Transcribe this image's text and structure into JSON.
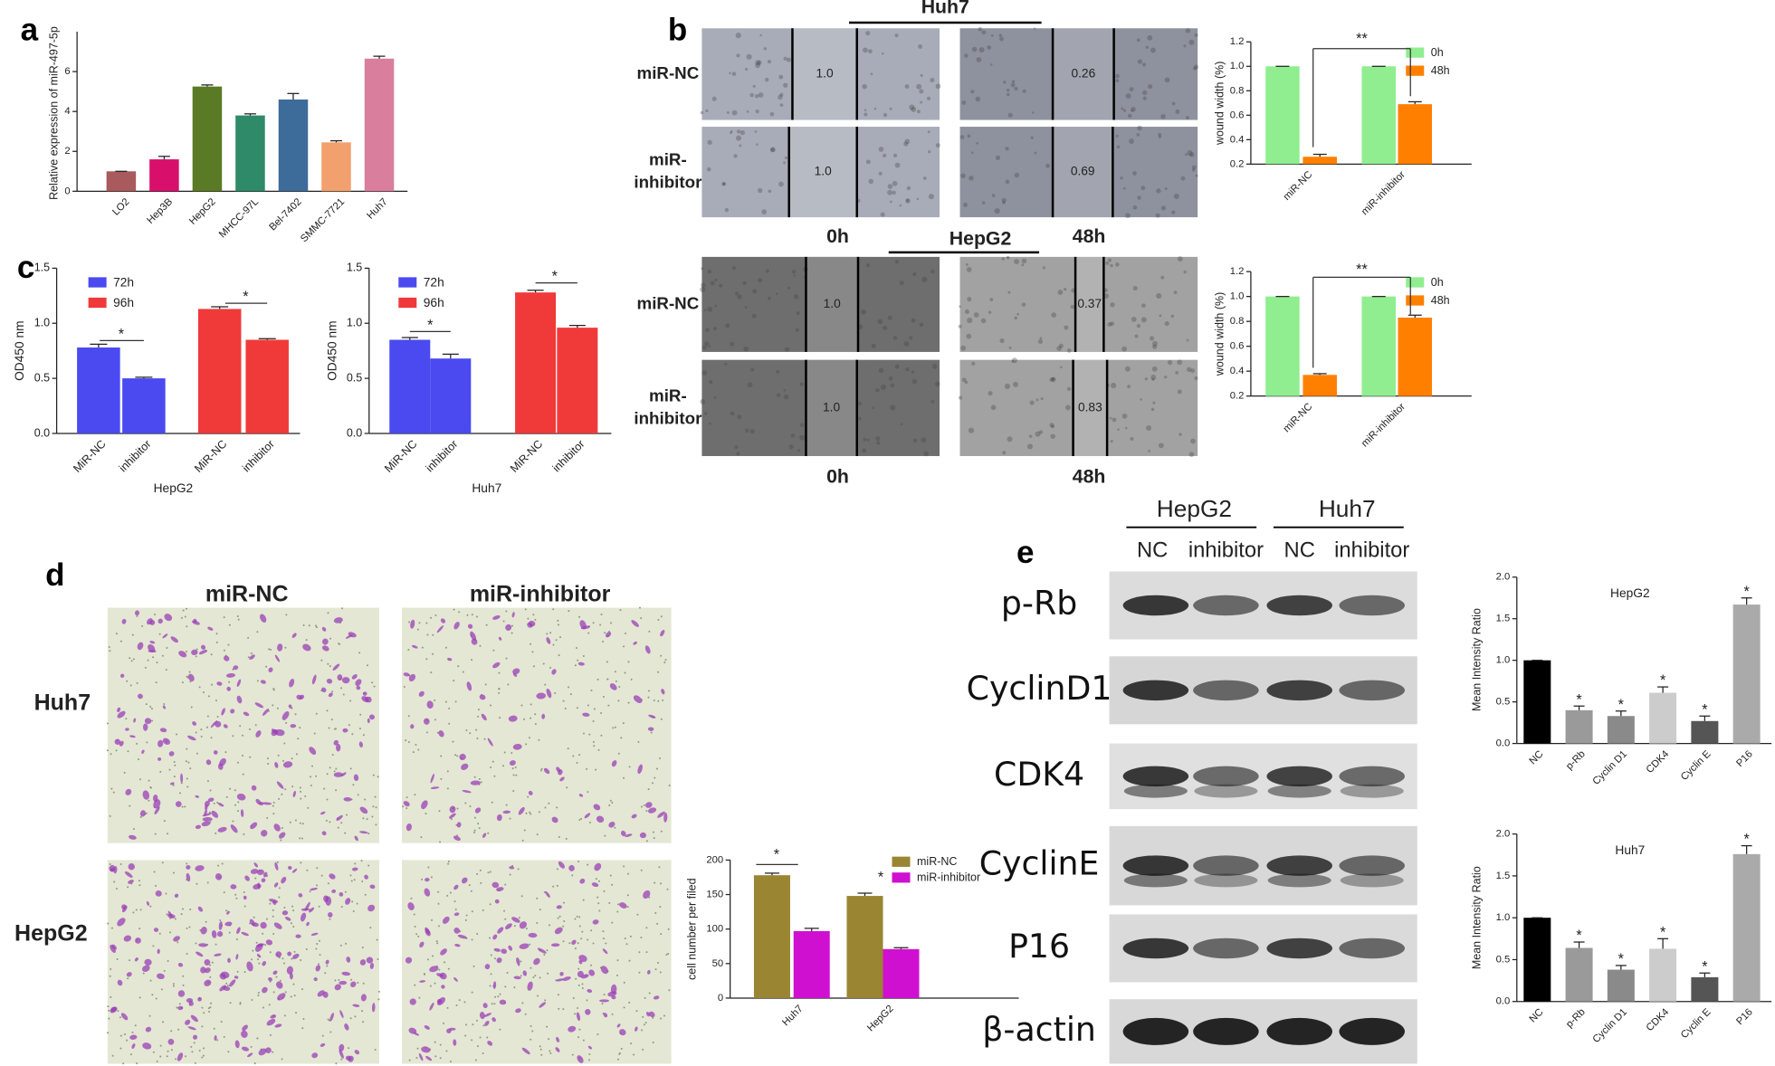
{
  "panel_labels": [
    "a",
    "b",
    "c",
    "d",
    "e"
  ],
  "chart_data": [
    {
      "type": "bar",
      "ylabel": "Relative expression of miR-497-5p",
      "categories": [
        "LO2",
        "Hep3B",
        "HepG2",
        "MHCC-97L",
        "Bel-7402",
        "SMMC-7721",
        "Huh7"
      ],
      "values": [
        1,
        1.6,
        5.25,
        3.8,
        4.6,
        2.45,
        6.65
      ],
      "errors": [
        0,
        0.15,
        0.08,
        0.08,
        0.3,
        0.08,
        0.12
      ],
      "colors": [
        "#a85a5c",
        "#d8106c",
        "#5b7a26",
        "#2f8a6a",
        "#3d6b9a",
        "#f2a06e",
        "#d97e9c"
      ],
      "ylim": [
        0,
        8
      ],
      "yticks": [
        0,
        2,
        4,
        6
      ]
    },
    {
      "type": "bar",
      "ylabel": "OD450 nm",
      "xlabel": "HepG2",
      "categories": [
        "MiR-NC",
        "inhibitor"
      ],
      "series": [
        {
          "name": "72h",
          "color": "#4a4af0",
          "values": [
            0.78,
            0.5
          ],
          "errors": [
            0.03,
            0.01
          ]
        },
        {
          "name": "96h",
          "color": "#f03a3a",
          "values": [
            1.13,
            0.85
          ],
          "errors": [
            0.02,
            0.01
          ]
        }
      ],
      "ylim": [
        0,
        1.5
      ],
      "yticks": [
        {
          "value": 0,
          "label": "0.0"
        },
        0.5,
        {
          "value": 1,
          "label": "1.0"
        },
        1.5
      ],
      "legend": "upper left",
      "annotations": [
        "*",
        "*"
      ]
    },
    {
      "type": "bar",
      "ylabel": "OD450 nm",
      "xlabel": "Huh7",
      "categories": [
        "MiR-NC",
        "inhibitor"
      ],
      "series": [
        {
          "name": "72h",
          "color": "#4a4af0",
          "values": [
            0.85,
            0.68
          ],
          "errors": [
            0.02,
            0.04
          ]
        },
        {
          "name": "96h",
          "color": "#f03a3a",
          "values": [
            1.28,
            0.96
          ],
          "errors": [
            0.02,
            0.02
          ]
        }
      ],
      "ylim": [
        0,
        1.5
      ],
      "yticks": [
        {
          "value": 0,
          "label": "0.0"
        },
        0.5,
        {
          "value": 1,
          "label": "1.0"
        },
        1.5
      ],
      "legend": "upper left",
      "annotations": [
        "*",
        "*"
      ]
    },
    {
      "type": "bar",
      "ylabel": "wound width (%)",
      "categories": [
        "miR-NC",
        "miR-inhibitor"
      ],
      "series": [
        {
          "name": "0h",
          "color": "#90ee90",
          "values": [
            1,
            1
          ],
          "errors": [
            0,
            0
          ]
        },
        {
          "name": "48h",
          "color": "#ff8000",
          "values": [
            0.26,
            0.69
          ],
          "errors": [
            0.02,
            0.02
          ]
        }
      ],
      "ylim": [
        0.2,
        1.2
      ],
      "yticks": [
        0.2,
        0.4,
        0.6,
        0.8,
        {
          "value": 1,
          "label": "1.0"
        },
        1.2
      ],
      "legend": "upper right",
      "annotations": [
        "**"
      ]
    },
    {
      "type": "bar",
      "ylabel": "wound width (%)",
      "categories": [
        "miR-NC",
        "miR-inhibitor"
      ],
      "series": [
        {
          "name": "0h",
          "color": "#90ee90",
          "values": [
            1,
            1
          ],
          "errors": [
            0,
            0
          ]
        },
        {
          "name": "48h",
          "color": "#ff8000",
          "values": [
            0.37,
            0.83
          ],
          "errors": [
            0.01,
            0.02
          ]
        }
      ],
      "ylim": [
        0.2,
        1.2
      ],
      "yticks": [
        0.2,
        0.4,
        0.6,
        0.8,
        {
          "value": 1,
          "label": "1.0"
        },
        1.2
      ],
      "legend": "upper right",
      "annotations": [
        "**"
      ]
    },
    {
      "type": "bar",
      "ylabel": "cell number per filed",
      "categories": [
        "Huh7",
        "HepG2"
      ],
      "series": [
        {
          "name": "miR-NC",
          "color": "#9a8532",
          "values": [
            178,
            148
          ],
          "errors": [
            3,
            4
          ]
        },
        {
          "name": "miR-inhibitor",
          "color": "#d010d0",
          "values": [
            97,
            71
          ],
          "errors": [
            4,
            2
          ]
        }
      ],
      "ylim": [
        0,
        200
      ],
      "yticks": [
        0,
        50,
        100,
        150,
        200
      ],
      "legend": "upper right",
      "annotations": [
        "*",
        "*"
      ]
    },
    {
      "type": "bar",
      "title": "HepG2",
      "ylabel": "Mean Intensity Ratio",
      "categories": [
        "NC",
        "p-Rb",
        "Cyclin D1",
        "CDK4",
        "Cyclin E",
        "P16"
      ],
      "values": [
        1,
        0.4,
        0.33,
        0.61,
        0.27,
        1.67
      ],
      "errors": [
        0,
        0.05,
        0.06,
        0.07,
        0.06,
        0.08
      ],
      "colors": [
        "#000000",
        "#9a9a9a",
        "#8a8a8a",
        "#cccccc",
        "#555555",
        "#aaaaaa"
      ],
      "ylim": [
        0,
        2
      ],
      "yticks": [
        {
          "value": 0,
          "label": "0.0"
        },
        0.5,
        {
          "value": 1,
          "label": "1.0"
        },
        1.5,
        {
          "value": 2,
          "label": "2.0"
        }
      ],
      "annotations": [
        "*",
        "*",
        "*",
        "*",
        "*"
      ]
    },
    {
      "type": "bar",
      "title": "Huh7",
      "ylabel": "Mean Intensity Ratio",
      "categories": [
        "NC",
        "p-Rb",
        "Cyclin D1",
        "CDK4",
        "Cyclin E",
        "P16"
      ],
      "values": [
        1,
        0.64,
        0.38,
        0.63,
        0.29,
        1.76
      ],
      "errors": [
        0,
        0.07,
        0.05,
        0.12,
        0.05,
        0.1
      ],
      "colors": [
        "#000000",
        "#9a9a9a",
        "#8a8a8a",
        "#cccccc",
        "#555555",
        "#aaaaaa"
      ],
      "ylim": [
        0,
        2
      ],
      "yticks": [
        {
          "value": 0,
          "label": "0.0"
        },
        0.5,
        {
          "value": 1,
          "label": "1.0"
        },
        1.5,
        {
          "value": 2,
          "label": "2.0"
        }
      ],
      "annotations": [
        "*",
        "*",
        "*",
        "*",
        "*"
      ]
    }
  ],
  "wound_assay": [
    {
      "cell_line": "Huh7",
      "rows": [
        {
          "label": [
            "miR-NC"
          ],
          "widths": [
            "1.0",
            "0.26"
          ]
        },
        {
          "label": [
            "miR-",
            "inhibitor"
          ],
          "widths": [
            "1.0",
            "0.69"
          ]
        }
      ],
      "times": [
        "0h",
        "48h"
      ]
    },
    {
      "cell_line": "HepG2",
      "rows": [
        {
          "label": [
            "miR-NC"
          ],
          "widths": [
            "1.0",
            "0.37"
          ]
        },
        {
          "label": [
            "miR-",
            "inhibitor"
          ],
          "widths": [
            "1.0",
            "0.83"
          ]
        }
      ],
      "times": [
        "0h",
        "48h"
      ]
    }
  ],
  "transwell": {
    "conditions": [
      "miR-NC",
      "miR-inhibitor"
    ],
    "cell_lines": [
      "Huh7",
      "HepG2"
    ]
  },
  "western_blot": {
    "cell_lines": [
      "HepG2",
      "Huh7"
    ],
    "conditions": [
      "NC",
      "inhibitor",
      "NC",
      "inhibitor"
    ],
    "proteins": [
      "p-Rb",
      "CyclinD1",
      "CDK4",
      "CyclinE",
      "P16",
      "β-actin"
    ]
  }
}
